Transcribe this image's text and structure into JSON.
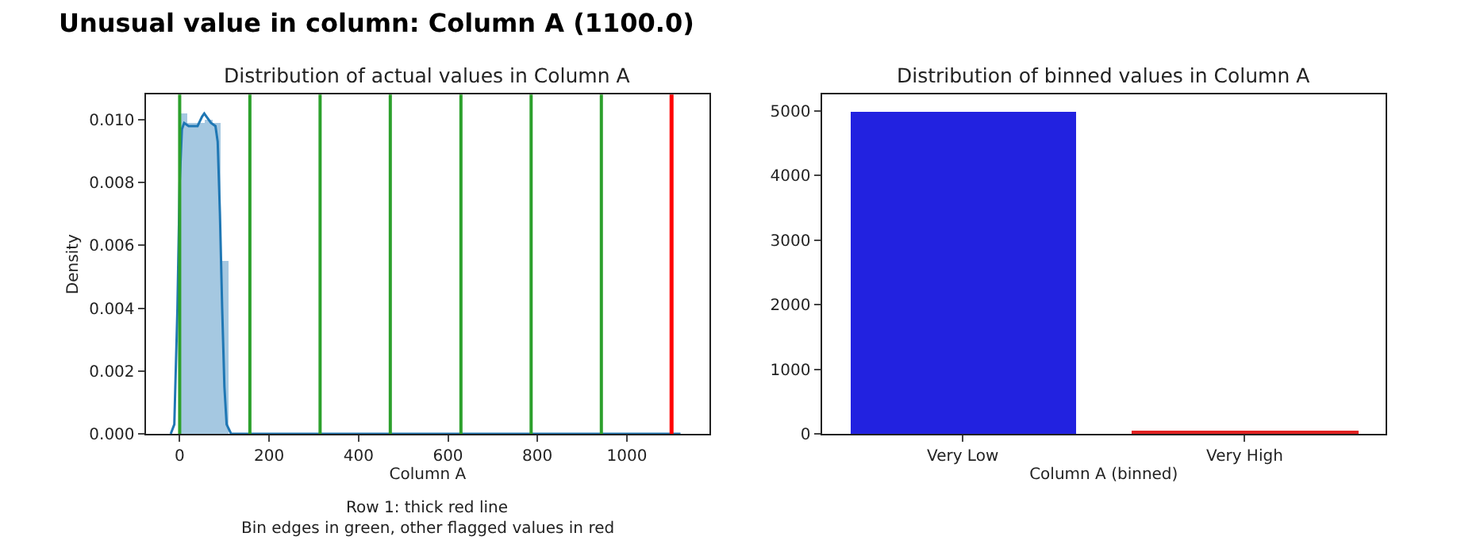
{
  "chart_data": [
    {
      "type": "histogram",
      "title": "Distribution of actual values in Column A",
      "xlabel": "Column A",
      "ylabel": "Density",
      "annotations": [
        "Unusual value in column: Column A (1100.0)",
        "Row 1: thick red line",
        "Bin edges in green, other flagged values in red"
      ],
      "bins": [
        0,
        18,
        36,
        54,
        72,
        90,
        108
      ],
      "values": [
        0.0102,
        0.0099,
        0.0099,
        0.01,
        0.0099,
        0.0055
      ],
      "color": "#a5c8e1",
      "series": [
        {
          "type": "line",
          "color": "#1f77b4",
          "x": [
            -20,
            -12,
            -5,
            0,
            5,
            10,
            20,
            30,
            40,
            50,
            55,
            60,
            70,
            80,
            85,
            90,
            95,
            100,
            105,
            115,
            400,
            800,
            1120
          ],
          "values": [
            0,
            0.0003,
            0.004,
            0.008,
            0.0097,
            0.0099,
            0.0098,
            0.0098,
            0.0098,
            0.0101,
            0.0102,
            0.0101,
            0.0099,
            0.0098,
            0.0093,
            0.007,
            0.004,
            0.0015,
            0.0003,
            0,
            0,
            0,
            0
          ]
        }
      ],
      "ref_lines": [
        {
          "axis": "x",
          "value": 0,
          "color": "#2ca02c"
        },
        {
          "axis": "x",
          "value": 157,
          "color": "#2ca02c"
        },
        {
          "axis": "x",
          "value": 314,
          "color": "#2ca02c"
        },
        {
          "axis": "x",
          "value": 471,
          "color": "#2ca02c"
        },
        {
          "axis": "x",
          "value": 629,
          "color": "#2ca02c"
        },
        {
          "axis": "x",
          "value": 786,
          "color": "#2ca02c"
        },
        {
          "axis": "x",
          "value": 943,
          "color": "#2ca02c"
        },
        {
          "axis": "x",
          "value": 1100,
          "color": "#ff0000"
        }
      ],
      "xlim": [
        -76,
        1185
      ],
      "xticks": [
        0,
        200,
        400,
        600,
        800,
        1000
      ],
      "ylim": [
        0,
        0.0108
      ],
      "yticks": [
        {
          "value": 0,
          "label": "0.000"
        },
        {
          "value": 0.002,
          "label": "0.002"
        },
        {
          "value": 0.004,
          "label": "0.004"
        },
        {
          "value": 0.006,
          "label": "0.006"
        },
        {
          "value": 0.008,
          "label": "0.008"
        },
        {
          "value": 0.01,
          "label": "0.010"
        }
      ]
    },
    {
      "type": "bar",
      "title": "Distribution of binned values in Column A",
      "xlabel": "Column A (binned)",
      "categories": [
        "Very Low",
        "Very High"
      ],
      "values": [
        4990,
        50
      ],
      "colors": [
        "#2222e0",
        "#e02020"
      ],
      "ylim": [
        0,
        5250
      ],
      "yticks": [
        0,
        1000,
        2000,
        3000,
        4000,
        5000
      ]
    }
  ]
}
